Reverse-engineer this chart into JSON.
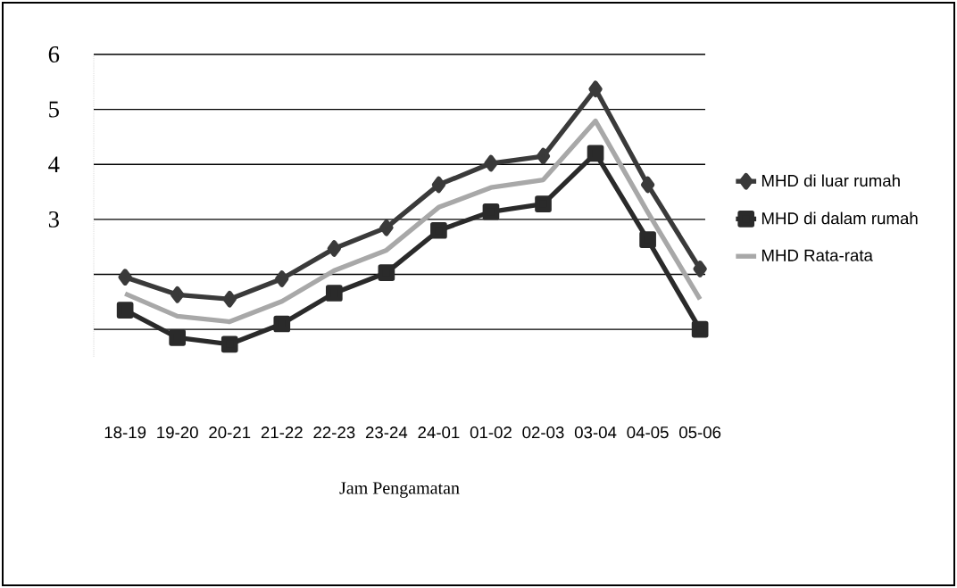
{
  "chart_data": {
    "type": "line",
    "xlabel": "Jam Pengamatan",
    "categories": [
      "18-19",
      "19-20",
      "20-21",
      "21-22",
      "22-23",
      "23-24",
      "24-01",
      "01-02",
      "02-03",
      "03-04",
      "04-05",
      "05-06"
    ],
    "series": [
      {
        "name": "MHD di luar rumah",
        "color": "#3a3a3a",
        "marker": "diamond",
        "values": [
          1.95,
          1.63,
          1.55,
          1.92,
          2.47,
          2.85,
          3.63,
          4.02,
          4.15,
          5.37,
          3.63,
          2.1
        ]
      },
      {
        "name": "MHD di dalam rumah",
        "color": "#2a2a2a",
        "marker": "square",
        "values": [
          1.35,
          0.85,
          0.73,
          1.1,
          1.66,
          2.03,
          2.8,
          3.14,
          3.28,
          4.2,
          2.63,
          1.0
        ]
      },
      {
        "name": "MHD Rata-rata",
        "color": "#a8a8a8",
        "marker": "none",
        "values": [
          1.65,
          1.24,
          1.14,
          1.51,
          2.07,
          2.44,
          3.22,
          3.58,
          3.72,
          4.79,
          3.13,
          1.55
        ]
      }
    ],
    "ylim": [
      0.5,
      6
    ],
    "yticks": [
      {
        "value": 1,
        "label": null
      },
      {
        "value": 2,
        "label": null
      },
      3,
      4,
      5,
      6
    ],
    "grid": "y",
    "legend": "right"
  }
}
